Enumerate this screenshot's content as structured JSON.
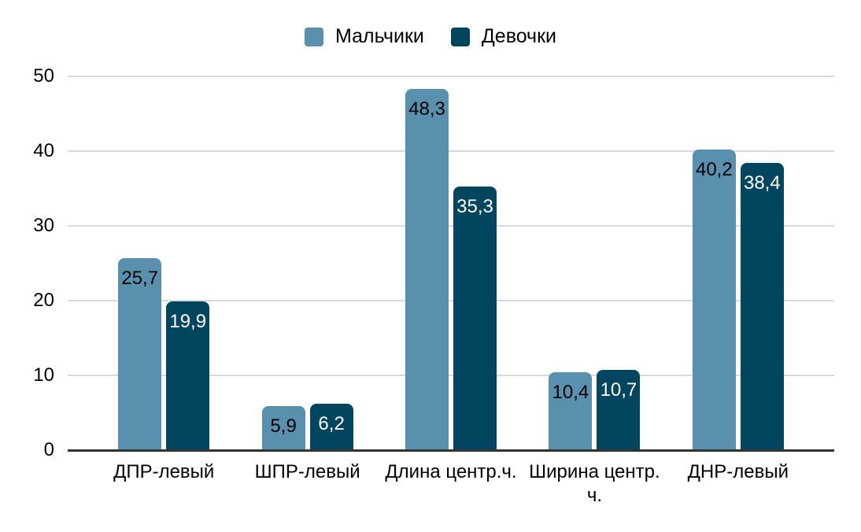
{
  "chart_data": {
    "type": "bar",
    "title": "",
    "xlabel": "",
    "ylabel": "",
    "categories": [
      "ДПР-левый",
      "ШПР-левый",
      "Длина центр.ч.",
      "Ширина центр. ч.",
      "ДНР-левый"
    ],
    "category_label_lines": [
      [
        "ДПР-левый"
      ],
      [
        "ШПР-левый"
      ],
      [
        "Длина центр.ч."
      ],
      [
        "Ширина центр.",
        "ч."
      ],
      [
        "ДНР-левый"
      ]
    ],
    "series": [
      {
        "name": "Мальчики",
        "color": "#5890ad",
        "value_label_color": "#000000",
        "values": [
          25.7,
          5.9,
          48.3,
          10.4,
          40.2
        ],
        "value_labels": [
          "25,7",
          "5,9",
          "48,3",
          "10,4",
          "40,2"
        ]
      },
      {
        "name": "Девочки",
        "color": "#02455f",
        "value_label_color": "#ffffff",
        "values": [
          19.9,
          6.2,
          35.3,
          10.7,
          38.4
        ],
        "value_labels": [
          "19,9",
          "6,2",
          "35,3",
          "10,7",
          "38,4"
        ]
      }
    ],
    "ylim": [
      0,
      50
    ],
    "yticks": [
      0,
      10,
      20,
      30,
      40,
      50
    ],
    "grid": true,
    "legend_position": "top",
    "colors": {
      "background": "#ffffff",
      "gridline": "#d9d9d9",
      "axis_line": "#333333",
      "text": "#000000"
    }
  }
}
